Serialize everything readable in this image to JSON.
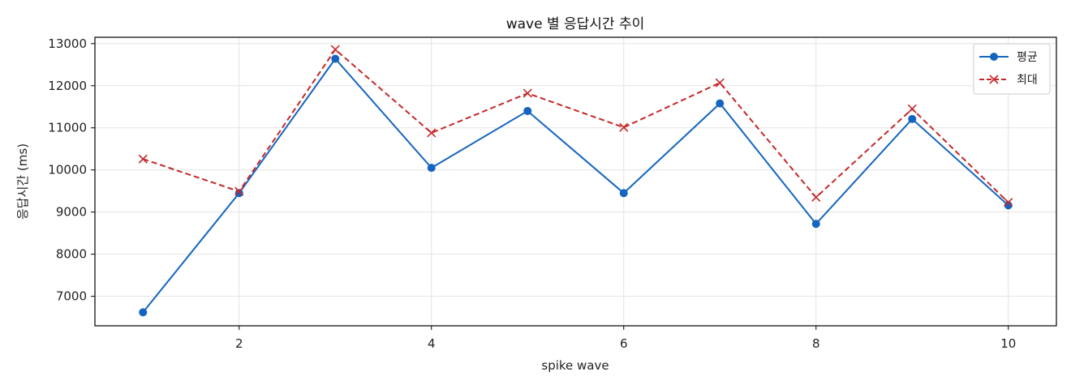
{
  "chart_data": {
    "type": "line",
    "title": "wave 별 응답시간 추이",
    "xlabel": "spike wave",
    "ylabel": "응답시간 (ms)",
    "x": [
      1,
      2,
      3,
      4,
      5,
      6,
      7,
      8,
      9,
      10
    ],
    "xlim": [
      0.5,
      10.5
    ],
    "ylim": [
      6300,
      13150
    ],
    "xticks": [
      2,
      4,
      6,
      8,
      10
    ],
    "yticks": [
      7000,
      8000,
      9000,
      10000,
      11000,
      12000,
      13000
    ],
    "grid": true,
    "legend_position": "top-right",
    "series": [
      {
        "name": "평균",
        "color": "#1565c0",
        "line_style": "solid",
        "marker": "circle",
        "values": [
          6620,
          9450,
          12640,
          10050,
          11400,
          9450,
          11580,
          8720,
          11210,
          9160
        ]
      },
      {
        "name": "최대",
        "color": "#c62828",
        "line_style": "dashed",
        "marker": "x",
        "values": [
          10260,
          9490,
          12860,
          10880,
          11820,
          11010,
          12070,
          9350,
          11450,
          9230
        ]
      }
    ]
  }
}
